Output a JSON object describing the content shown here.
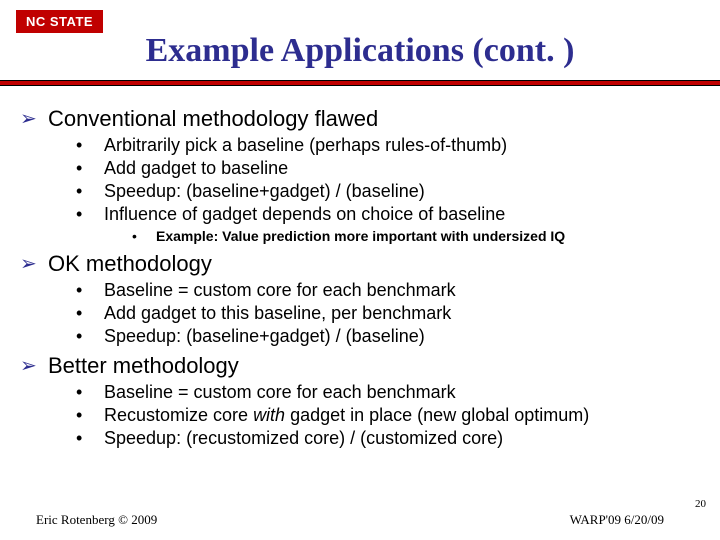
{
  "badge": "NC STATE",
  "title": "Example Applications (cont. )",
  "colors": {
    "accent": "#c00000",
    "titleColor": "#2d2d8f",
    "bg": "#ffffff"
  },
  "sections": {
    "s1": {
      "heading": "Conventional methodology flawed",
      "bullets": [
        "Arbitrarily pick a baseline (perhaps rules-of-thumb)",
        "Add gadget to baseline",
        "Speedup: (baseline+gadget) / (baseline)",
        "Influence of gadget depends on choice of baseline"
      ],
      "sub": "Example: Value prediction more important with undersized IQ"
    },
    "s2": {
      "heading": "OK methodology",
      "bullets": [
        "Baseline = custom core for each benchmark",
        "Add gadget to this baseline, per benchmark",
        "Speedup: (baseline+gadget) / (baseline)"
      ]
    },
    "s3": {
      "heading": "Better methodology",
      "bullets_html": [
        "Baseline = custom core for each benchmark",
        "Recustomize core <span class=\"italic\">with</span> gadget in place (new global optimum)",
        "Speedup: (recustomized core) / (customized core)"
      ]
    }
  },
  "footer": {
    "left": "Eric Rotenberg © 2009",
    "right": "WARP'09   6/20/09",
    "page": "20"
  }
}
